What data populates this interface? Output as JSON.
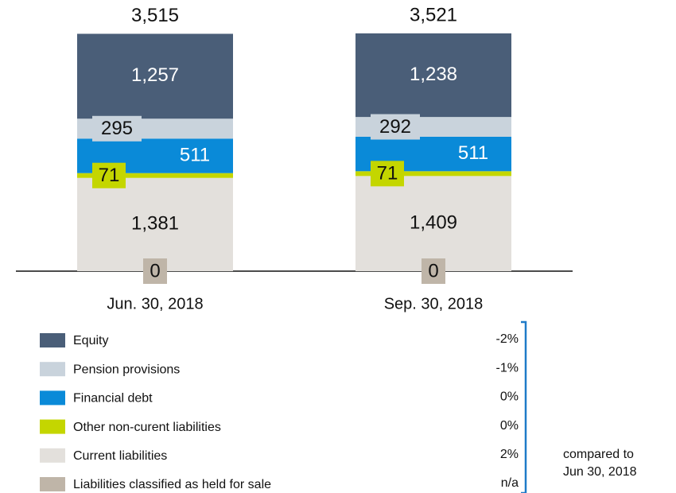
{
  "chart_data": {
    "type": "stacked_bar",
    "categories": [
      "Jun. 30, 2018",
      "Sep. 30, 2018"
    ],
    "totals": [
      3515,
      3521
    ],
    "total_labels": [
      "3,515",
      "3,521"
    ],
    "series": [
      {
        "name": "Equity",
        "color": "#4a5e78",
        "values": [
          1257,
          1238
        ],
        "value_labels": [
          "1,257",
          "1,238"
        ],
        "change": "-2%"
      },
      {
        "name": "Pension provisions",
        "color": "#c9d3dc",
        "values": [
          295,
          292
        ],
        "value_labels": [
          "295",
          "292"
        ],
        "change": "-1%"
      },
      {
        "name": "Financial debt",
        "color": "#0a8ad8",
        "values": [
          511,
          511
        ],
        "value_labels": [
          "511",
          "511"
        ],
        "change": "0%"
      },
      {
        "name": "Other non-curent liabilities",
        "color": "#c4d600",
        "values": [
          71,
          71
        ],
        "value_labels": [
          "71",
          "71"
        ],
        "change": "0%"
      },
      {
        "name": "Current liabilities",
        "color": "#e3e0dc",
        "values": [
          1381,
          1409
        ],
        "value_labels": [
          "1,381",
          "1,409"
        ],
        "change": "2%"
      },
      {
        "name": "Liabilities classified as held for sale",
        "color": "#bfb5a8",
        "values": [
          0,
          0
        ],
        "value_labels": [
          "0",
          "0"
        ],
        "change": "n/a"
      }
    ],
    "annotation_lines": [
      "compared to",
      "Jun 30, 2018"
    ]
  }
}
